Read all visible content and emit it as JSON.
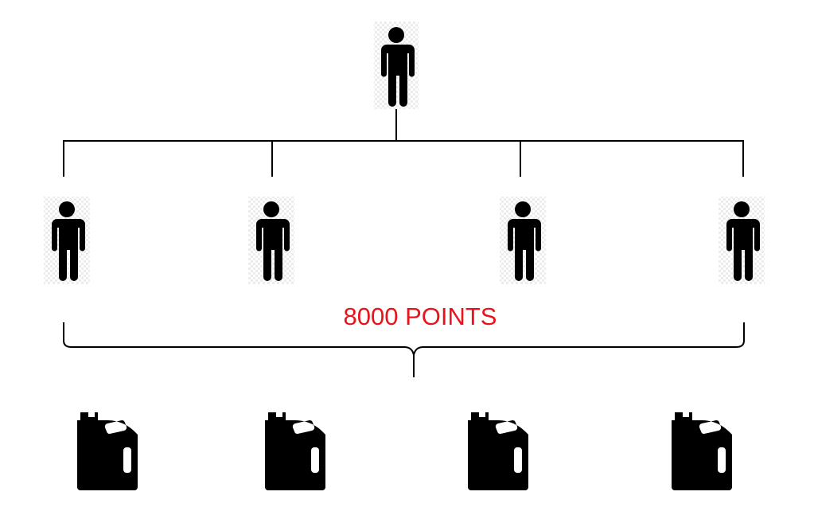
{
  "diagram": {
    "points_label": "8000 POINTS",
    "points_label_color": "#e8141c",
    "line_color": "#000000",
    "icon_color": "#000000",
    "icon_backdrop_color": "#e6e6e6",
    "nodes": {
      "root": {
        "icon": "person-icon"
      },
      "children": [
        {
          "icon": "person-icon"
        },
        {
          "icon": "person-icon"
        },
        {
          "icon": "person-icon"
        },
        {
          "icon": "person-icon"
        }
      ],
      "rewards": [
        {
          "icon": "oil-jug-icon"
        },
        {
          "icon": "oil-jug-icon"
        },
        {
          "icon": "oil-jug-icon"
        },
        {
          "icon": "oil-jug-icon"
        }
      ]
    }
  }
}
